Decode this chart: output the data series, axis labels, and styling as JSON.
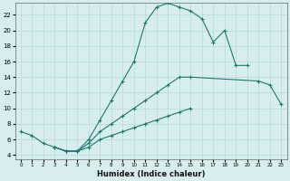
{
  "xlabel": "Humidex (Indice chaleur)",
  "background_color": "#d8eeee",
  "line_color": "#1a7a6e",
  "xlim": [
    -0.5,
    23.5
  ],
  "ylim": [
    3.5,
    23.5
  ],
  "xticks": [
    0,
    1,
    2,
    3,
    4,
    5,
    6,
    7,
    8,
    9,
    10,
    11,
    12,
    13,
    14,
    15,
    16,
    17,
    18,
    19,
    20,
    21,
    22,
    23
  ],
  "yticks": [
    4,
    6,
    8,
    10,
    12,
    14,
    16,
    18,
    20,
    22
  ],
  "line1_x": [
    0,
    1,
    2,
    3,
    4,
    5,
    6,
    7,
    8,
    9,
    10,
    11,
    12,
    13,
    14,
    15,
    16,
    17,
    18,
    19,
    20
  ],
  "line1_y": [
    7.0,
    6.5,
    5.5,
    5.0,
    4.5,
    4.5,
    6.0,
    8.5,
    11.0,
    13.5,
    16.0,
    21.0,
    23.0,
    23.5,
    23.0,
    22.5,
    21.5,
    18.5,
    20.0,
    15.5,
    15.5
  ],
  "line2_x": [
    3,
    4,
    5,
    6,
    7,
    8,
    9,
    10,
    11,
    12,
    13,
    14,
    15,
    21,
    22,
    23
  ],
  "line2_y": [
    5.0,
    4.5,
    4.5,
    5.5,
    7.0,
    8.0,
    9.0,
    10.0,
    11.0,
    12.0,
    13.0,
    14.0,
    14.0,
    13.5,
    13.0,
    10.5
  ],
  "line3_x": [
    3,
    4,
    5,
    6,
    7,
    8,
    9,
    10,
    11,
    12,
    13,
    14,
    15
  ],
  "line3_y": [
    5.0,
    4.5,
    4.5,
    5.0,
    6.0,
    6.5,
    7.0,
    7.5,
    8.0,
    8.5,
    9.0,
    9.5,
    10.0
  ]
}
